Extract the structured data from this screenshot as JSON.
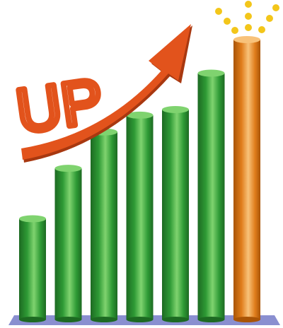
{
  "illustration": {
    "word": "UP",
    "bar_levels": [
      0.36,
      0.54,
      0.67,
      0.73,
      0.75,
      0.88,
      1.0
    ],
    "highlight_index": 6,
    "colors": {
      "bar": "#2e9a35",
      "bar_light": "#7fd36f",
      "bar_dark": "#1d6a22",
      "highlight": "#e07d1c",
      "highlight_light": "#f8c27a",
      "highlight_dark": "#a95406",
      "base": "#8a8fd0",
      "base_dark": "#5e63a8",
      "arrow": "#e2531c",
      "arrow_dark": "#a83810",
      "sparkle": "#f3c61a"
    },
    "icons": [
      "sparkle-icon",
      "up-arrow-icon"
    ]
  }
}
